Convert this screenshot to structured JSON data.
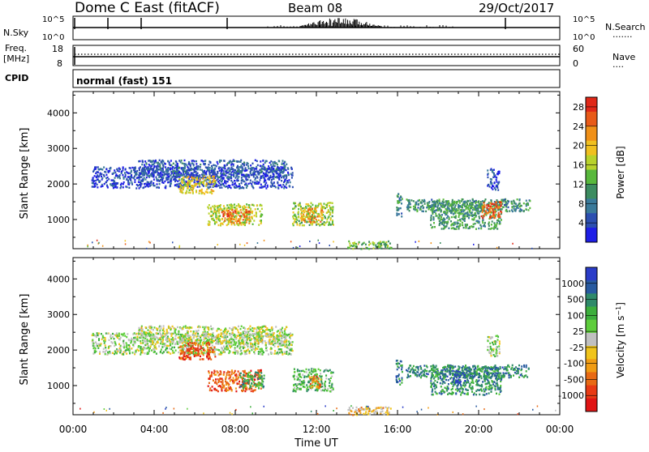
{
  "header": {
    "station": "Dome C East (fitACF)",
    "beam": "Beam 08",
    "date": "29/Oct/2017"
  },
  "status_panels": {
    "nsky_label": "N.Sky",
    "nsky_ticks": [
      "10^5",
      "10^0"
    ],
    "nsearch_label": "N.Search",
    "nsearch_ticks": [
      "10^5",
      "10^0"
    ],
    "freq_label": "Freq.",
    "freq_unit": "[MHz]",
    "freq_ticks": [
      "18",
      "8"
    ],
    "nave_label": "Nave",
    "nave_ticks": [
      "60",
      "0"
    ],
    "cpid_label": "CPID",
    "cpid_value": "normal (fast) 151"
  },
  "chart_data": [
    {
      "type": "heatmap",
      "name": "power",
      "ylabel": "Slant Range [km]",
      "xlabel": "Time UT",
      "xlim": [
        0,
        24
      ],
      "ylim": [
        180,
        4600
      ],
      "x_ticks": [
        "00:00",
        "04:00",
        "08:00",
        "12:00",
        "16:00",
        "20:00",
        "00:00"
      ],
      "y_ticks": [
        "1000",
        "2000",
        "3000",
        "4000"
      ],
      "colorbar": {
        "label": "Power [dB]",
        "ticks": [
          "4",
          "8",
          "12",
          "16",
          "20",
          "24",
          "28"
        ],
        "range": [
          0,
          30
        ],
        "colors": [
          "#1e1ee6",
          "#2c4fb0",
          "#3a7a9a",
          "#3c8c60",
          "#58b83c",
          "#b8d22c",
          "#f0c020",
          "#f09018",
          "#e85a18",
          "#e02818"
        ]
      },
      "regions": [
        {
          "t0": 0.9,
          "t1": 10.8,
          "r0": 1900,
          "r1": 2500,
          "level": 0.12
        },
        {
          "t0": 3.2,
          "t1": 10.5,
          "r0": 2200,
          "r1": 2700,
          "level": 0.18
        },
        {
          "t0": 5.2,
          "t1": 7.0,
          "r0": 1750,
          "r1": 2250,
          "level": 0.62
        },
        {
          "t0": 6.6,
          "t1": 9.3,
          "r0": 860,
          "r1": 1460,
          "level": 0.55
        },
        {
          "t0": 7.3,
          "t1": 8.7,
          "r0": 920,
          "r1": 1300,
          "level": 0.8
        },
        {
          "t0": 10.8,
          "t1": 12.8,
          "r0": 860,
          "r1": 1500,
          "level": 0.5
        },
        {
          "t0": 11.2,
          "t1": 12.3,
          "r0": 950,
          "r1": 1350,
          "level": 0.74
        },
        {
          "t0": 15.9,
          "t1": 16.2,
          "r0": 1050,
          "r1": 1750,
          "level": 0.3
        },
        {
          "t0": 16.4,
          "t1": 22.5,
          "r0": 1250,
          "r1": 1600,
          "level": 0.32
        },
        {
          "t0": 17.6,
          "t1": 21.1,
          "r0": 760,
          "r1": 1550,
          "level": 0.36
        },
        {
          "t0": 20.1,
          "t1": 21.1,
          "r0": 1060,
          "r1": 1540,
          "level": 0.88
        },
        {
          "t0": 20.4,
          "t1": 21.0,
          "r0": 1850,
          "r1": 2450,
          "level": 0.16
        },
        {
          "t0": 13.5,
          "t1": 15.7,
          "r0": 200,
          "r1": 420,
          "level": 0.45
        }
      ]
    },
    {
      "type": "heatmap",
      "name": "velocity",
      "ylabel": "Slant Range [km]",
      "xlabel": "Time UT",
      "xlim": [
        0,
        24
      ],
      "ylim": [
        180,
        4600
      ],
      "x_ticks": [
        "00:00",
        "04:00",
        "08:00",
        "12:00",
        "16:00",
        "20:00",
        "00:00"
      ],
      "y_ticks": [
        "1000",
        "2000",
        "3000",
        "4000"
      ],
      "colorbar": {
        "label": "Velocity [m s^-1]",
        "ticks": [
          "1000",
          "500",
          "100",
          "25",
          "-25",
          "-100",
          "-500",
          "-1000"
        ],
        "colors": [
          "#2a3cc8",
          "#285aa0",
          "#2f8a6a",
          "#3cae3c",
          "#5ecd3c",
          "#c0c0c0",
          "#f0c41c",
          "#f09c14",
          "#e86a14",
          "#e83a14",
          "#e01414"
        ]
      },
      "regions": [
        {
          "t0": 0.9,
          "t1": 10.8,
          "r0": 1900,
          "r1": 2500,
          "level": 0.45
        },
        {
          "t0": 3.2,
          "t1": 10.5,
          "r0": 2200,
          "r1": 2700,
          "level": 0.5
        },
        {
          "t0": 5.2,
          "t1": 7.0,
          "r0": 1750,
          "r1": 2250,
          "level": 0.82
        },
        {
          "t0": 6.6,
          "t1": 9.3,
          "r0": 860,
          "r1": 1460,
          "level": 0.82
        },
        {
          "t0": 8.2,
          "t1": 9.4,
          "r0": 950,
          "r1": 1400,
          "level": 0.3
        },
        {
          "t0": 10.8,
          "t1": 12.8,
          "r0": 860,
          "r1": 1500,
          "level": 0.35
        },
        {
          "t0": 11.6,
          "t1": 12.2,
          "r0": 950,
          "r1": 1300,
          "level": 0.72
        },
        {
          "t0": 15.9,
          "t1": 16.2,
          "r0": 1050,
          "r1": 1750,
          "level": 0.22
        },
        {
          "t0": 16.4,
          "t1": 22.5,
          "r0": 1250,
          "r1": 1600,
          "level": 0.22
        },
        {
          "t0": 17.6,
          "t1": 21.1,
          "r0": 760,
          "r1": 1550,
          "level": 0.24
        },
        {
          "t0": 18.7,
          "t1": 19.3,
          "r0": 1080,
          "r1": 1450,
          "level": 0.08
        },
        {
          "t0": 20.4,
          "t1": 21.0,
          "r0": 1850,
          "r1": 2450,
          "level": 0.45
        },
        {
          "t0": 13.5,
          "t1": 15.7,
          "r0": 200,
          "r1": 420,
          "level": 0.6
        }
      ]
    }
  ]
}
